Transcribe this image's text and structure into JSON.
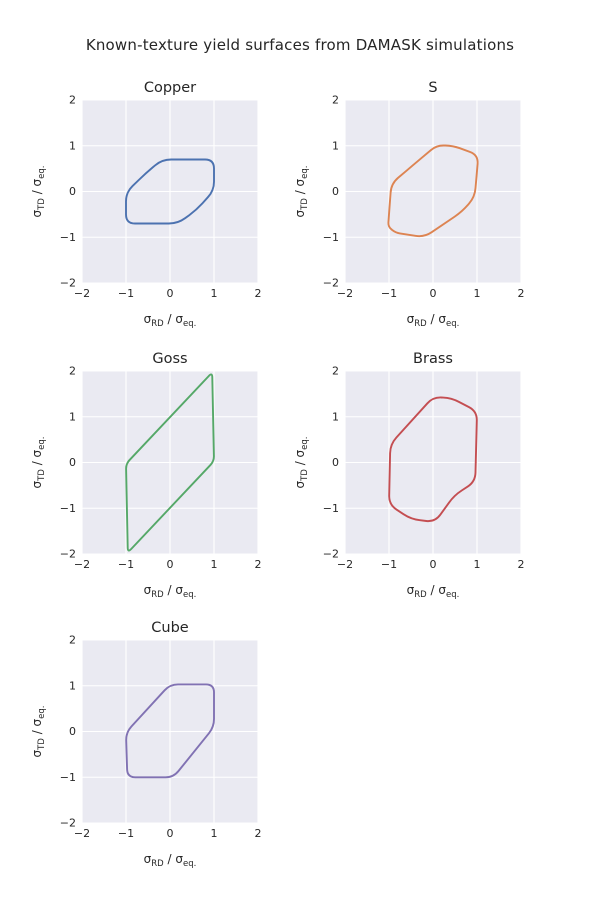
{
  "figure": {
    "title": "Known-texture yield surfaces from DAMASK simulations",
    "background": "#ffffff",
    "plot_background": "#eaeaf2",
    "grid_color": "#ffffff",
    "text_color": "#262626"
  },
  "chart_data": [
    {
      "type": "line",
      "title": "Copper",
      "xlabel": "σ_{RD} / σ_{eq.}",
      "ylabel": "σ_{TD} / σ_{eq.}",
      "xlim": [
        -2,
        2
      ],
      "ylim": [
        -2,
        2
      ],
      "xticks": [
        -2,
        -1,
        0,
        1,
        2
      ],
      "yticks": [
        -2,
        -1,
        0,
        1,
        2
      ],
      "grid": true,
      "legend": false,
      "color": "#4c72b0",
      "closed": true,
      "corner_radius": 9,
      "points": [
        [
          -1.0,
          -0.02
        ],
        [
          -0.55,
          0.4
        ],
        [
          -0.18,
          0.7
        ],
        [
          1.0,
          0.7
        ],
        [
          1.0,
          0.02
        ],
        [
          0.6,
          -0.4
        ],
        [
          0.18,
          -0.7
        ],
        [
          -1.0,
          -0.7
        ]
      ]
    },
    {
      "type": "line",
      "title": "S",
      "xlabel": "σ_{RD} / σ_{eq.}",
      "ylabel": "σ_{TD} / σ_{eq.}",
      "xlim": [
        -2,
        2
      ],
      "ylim": [
        -2,
        2
      ],
      "xticks": [
        -2,
        -1,
        0,
        1,
        2
      ],
      "yticks": [
        -2,
        -1,
        0,
        1,
        2
      ],
      "grid": true,
      "legend": false,
      "color": "#dd8452",
      "closed": true,
      "corner_radius": 9,
      "points": [
        [
          -0.95,
          0.17
        ],
        [
          -0.45,
          0.58
        ],
        [
          0.08,
          1.01
        ],
        [
          0.45,
          1.0
        ],
        [
          1.03,
          0.8
        ],
        [
          0.95,
          -0.12
        ],
        [
          0.66,
          -0.44
        ],
        [
          -0.2,
          -1.0
        ],
        [
          -0.85,
          -0.9
        ],
        [
          -1.02,
          -0.77
        ]
      ]
    },
    {
      "type": "line",
      "title": "Goss",
      "xlabel": "σ_{RD} / σ_{eq.}",
      "ylabel": "σ_{TD} / σ_{eq.}",
      "xlim": [
        -2,
        2
      ],
      "ylim": [
        -2,
        2
      ],
      "xticks": [
        -2,
        -1,
        0,
        1,
        2
      ],
      "yticks": [
        -2,
        -1,
        0,
        1,
        2
      ],
      "grid": true,
      "legend": false,
      "color": "#55a868",
      "closed": true,
      "corner_radius": 5,
      "points": [
        [
          -1.0,
          -0.03
        ],
        [
          0.96,
          1.97
        ],
        [
          1.0,
          0.03
        ],
        [
          -0.96,
          -1.97
        ]
      ]
    },
    {
      "type": "line",
      "title": "Brass",
      "xlabel": "σ_{RD} / σ_{eq.}",
      "ylabel": "σ_{TD} / σ_{eq.}",
      "xlim": [
        -2,
        2
      ],
      "ylim": [
        -2,
        2
      ],
      "xticks": [
        -2,
        -1,
        0,
        1,
        2
      ],
      "yticks": [
        -2,
        -1,
        0,
        1,
        2
      ],
      "grid": true,
      "legend": false,
      "color": "#c44e52",
      "closed": true,
      "corner_radius": 9,
      "points": [
        [
          -0.97,
          0.4
        ],
        [
          0.0,
          1.43
        ],
        [
          0.42,
          1.41
        ],
        [
          1.0,
          1.12
        ],
        [
          0.96,
          -0.42
        ],
        [
          0.48,
          -0.72
        ],
        [
          0.05,
          -1.3
        ],
        [
          -0.5,
          -1.24
        ],
        [
          -1.0,
          -0.92
        ]
      ]
    },
    {
      "type": "line",
      "title": "Cube",
      "xlabel": "σ_{RD} / σ_{eq.}",
      "ylabel": "σ_{TD} / σ_{eq.}",
      "xlim": [
        -2,
        2
      ],
      "ylim": [
        -2,
        2
      ],
      "xticks": [
        -2,
        -1,
        0,
        1,
        2
      ],
      "yticks": [
        -2,
        -1,
        0,
        1,
        2
      ],
      "grid": true,
      "legend": false,
      "color": "#8172b3",
      "closed": true,
      "corner_radius": 8,
      "points": [
        [
          -1.0,
          -0.02
        ],
        [
          0.0,
          1.03
        ],
        [
          1.0,
          1.03
        ],
        [
          1.0,
          0.1
        ],
        [
          0.08,
          -1.0
        ],
        [
          -0.97,
          -1.0
        ]
      ]
    }
  ]
}
